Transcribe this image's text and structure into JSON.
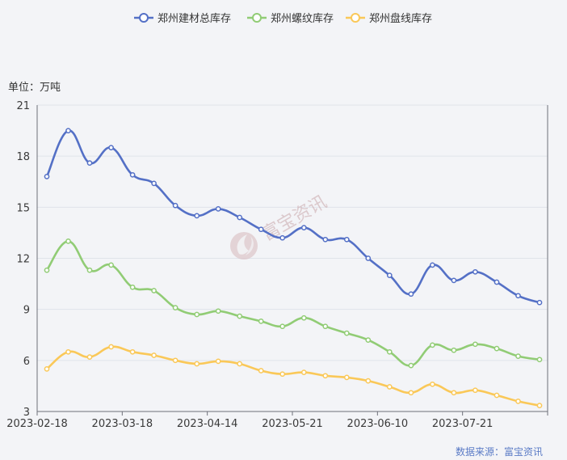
{
  "chart_data": {
    "type": "line",
    "unit_label": "单位：万吨",
    "source_label": "数据来源：富宝资讯",
    "watermark": "富宝资讯",
    "ylim": [
      3,
      21
    ],
    "yticks": [
      3,
      6,
      9,
      12,
      15,
      18,
      21
    ],
    "xticks": [
      "2023-02-18",
      "2023-03-18",
      "2023-04-14",
      "2023-05-21",
      "2023-06-10",
      "2023-07-21"
    ],
    "grid": "horizontal",
    "legend_position": "top-center",
    "series": [
      {
        "name": "郑州建材总库存",
        "color": "#5470c6",
        "values": [
          16.8,
          19.5,
          17.6,
          18.5,
          16.9,
          16.4,
          15.1,
          14.5,
          14.9,
          14.4,
          13.7,
          13.2,
          13.8,
          13.1,
          13.1,
          12.0,
          11.0,
          9.9,
          11.6,
          10.7,
          11.2,
          10.6,
          9.8,
          9.4
        ]
      },
      {
        "name": "郑州螺纹库存",
        "color": "#91cc75",
        "values": [
          11.3,
          13.0,
          11.3,
          11.6,
          10.3,
          10.1,
          9.1,
          8.7,
          8.9,
          8.6,
          8.3,
          8.0,
          8.5,
          8.0,
          7.6,
          7.2,
          6.5,
          5.7,
          6.9,
          6.6,
          6.95,
          6.7,
          6.25,
          6.05
        ]
      },
      {
        "name": "郑州盘线库存",
        "color": "#fac858",
        "values": [
          5.5,
          6.5,
          6.2,
          6.8,
          6.5,
          6.3,
          6.0,
          5.8,
          5.95,
          5.8,
          5.4,
          5.2,
          5.3,
          5.1,
          5.0,
          4.8,
          4.45,
          4.1,
          4.6,
          4.1,
          4.25,
          3.95,
          3.6,
          3.35
        ]
      }
    ]
  }
}
